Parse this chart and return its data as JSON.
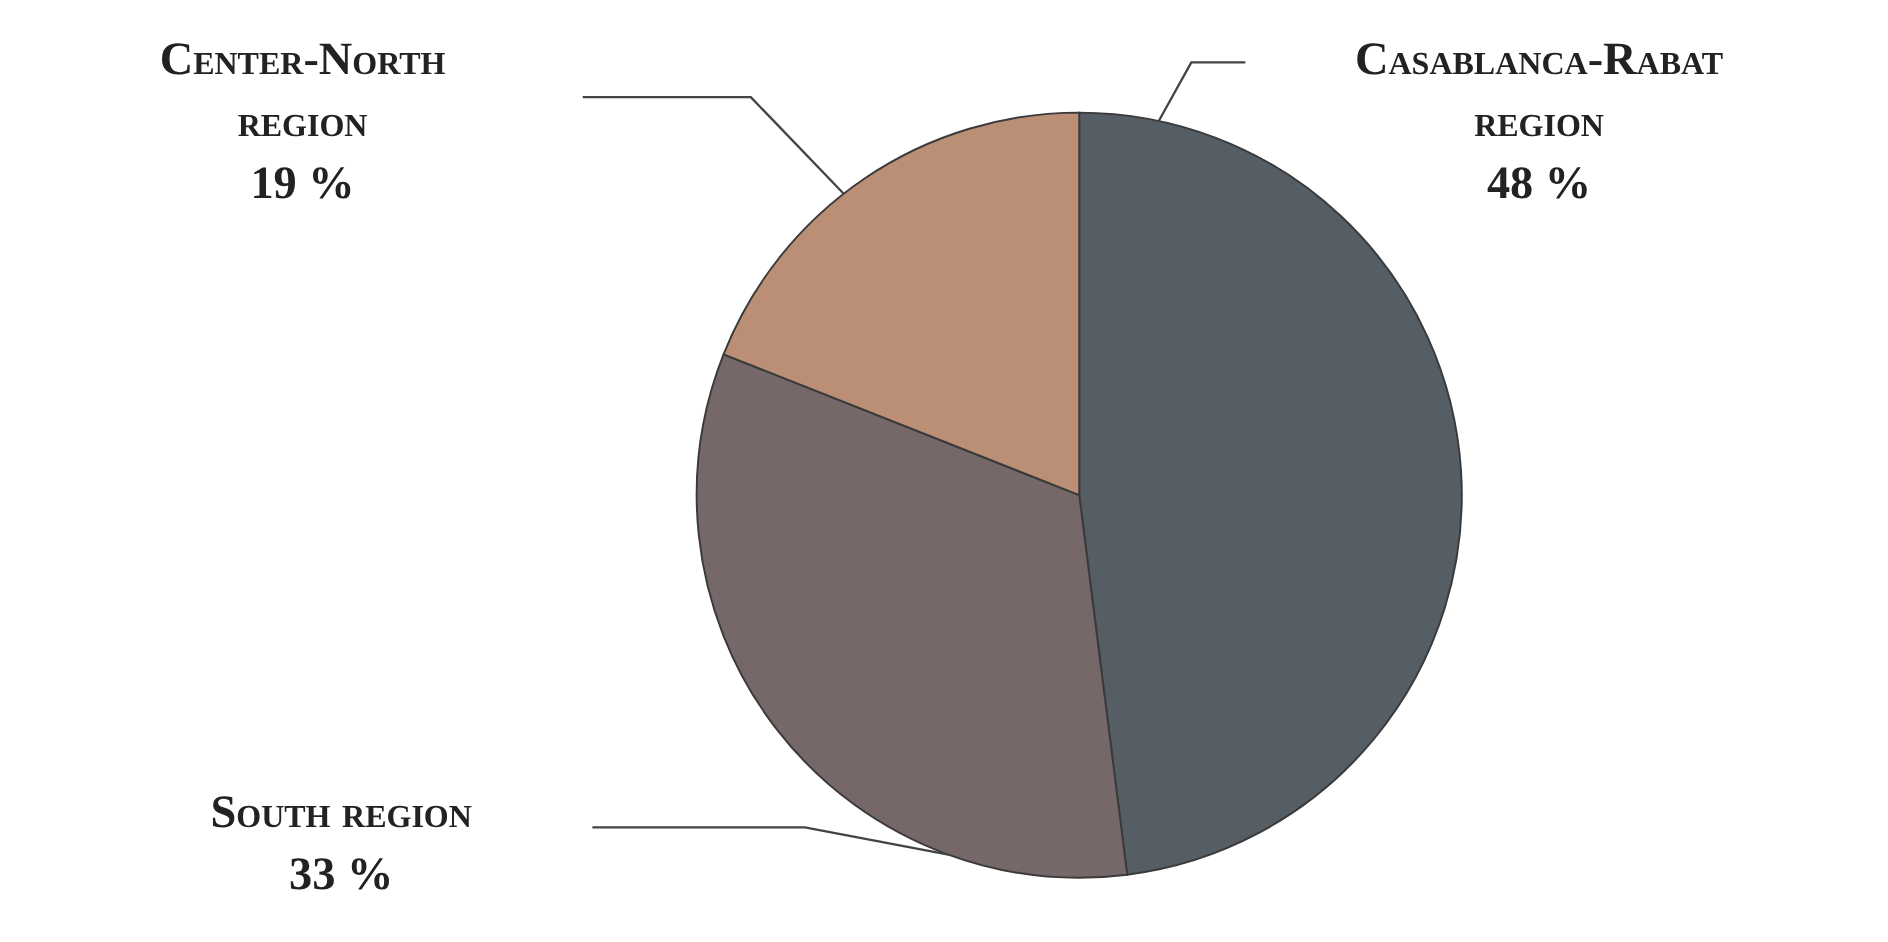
{
  "chart_data": {
    "type": "pie",
    "categories": [
      "Casablanca-Rabat region",
      "South region",
      "Center-North region"
    ],
    "values": [
      48,
      33,
      19
    ],
    "colors": [
      "#555d65",
      "#766868",
      "#bb8f76"
    ],
    "value_labels": [
      "48 %",
      "33 %",
      "19 %"
    ]
  }
}
